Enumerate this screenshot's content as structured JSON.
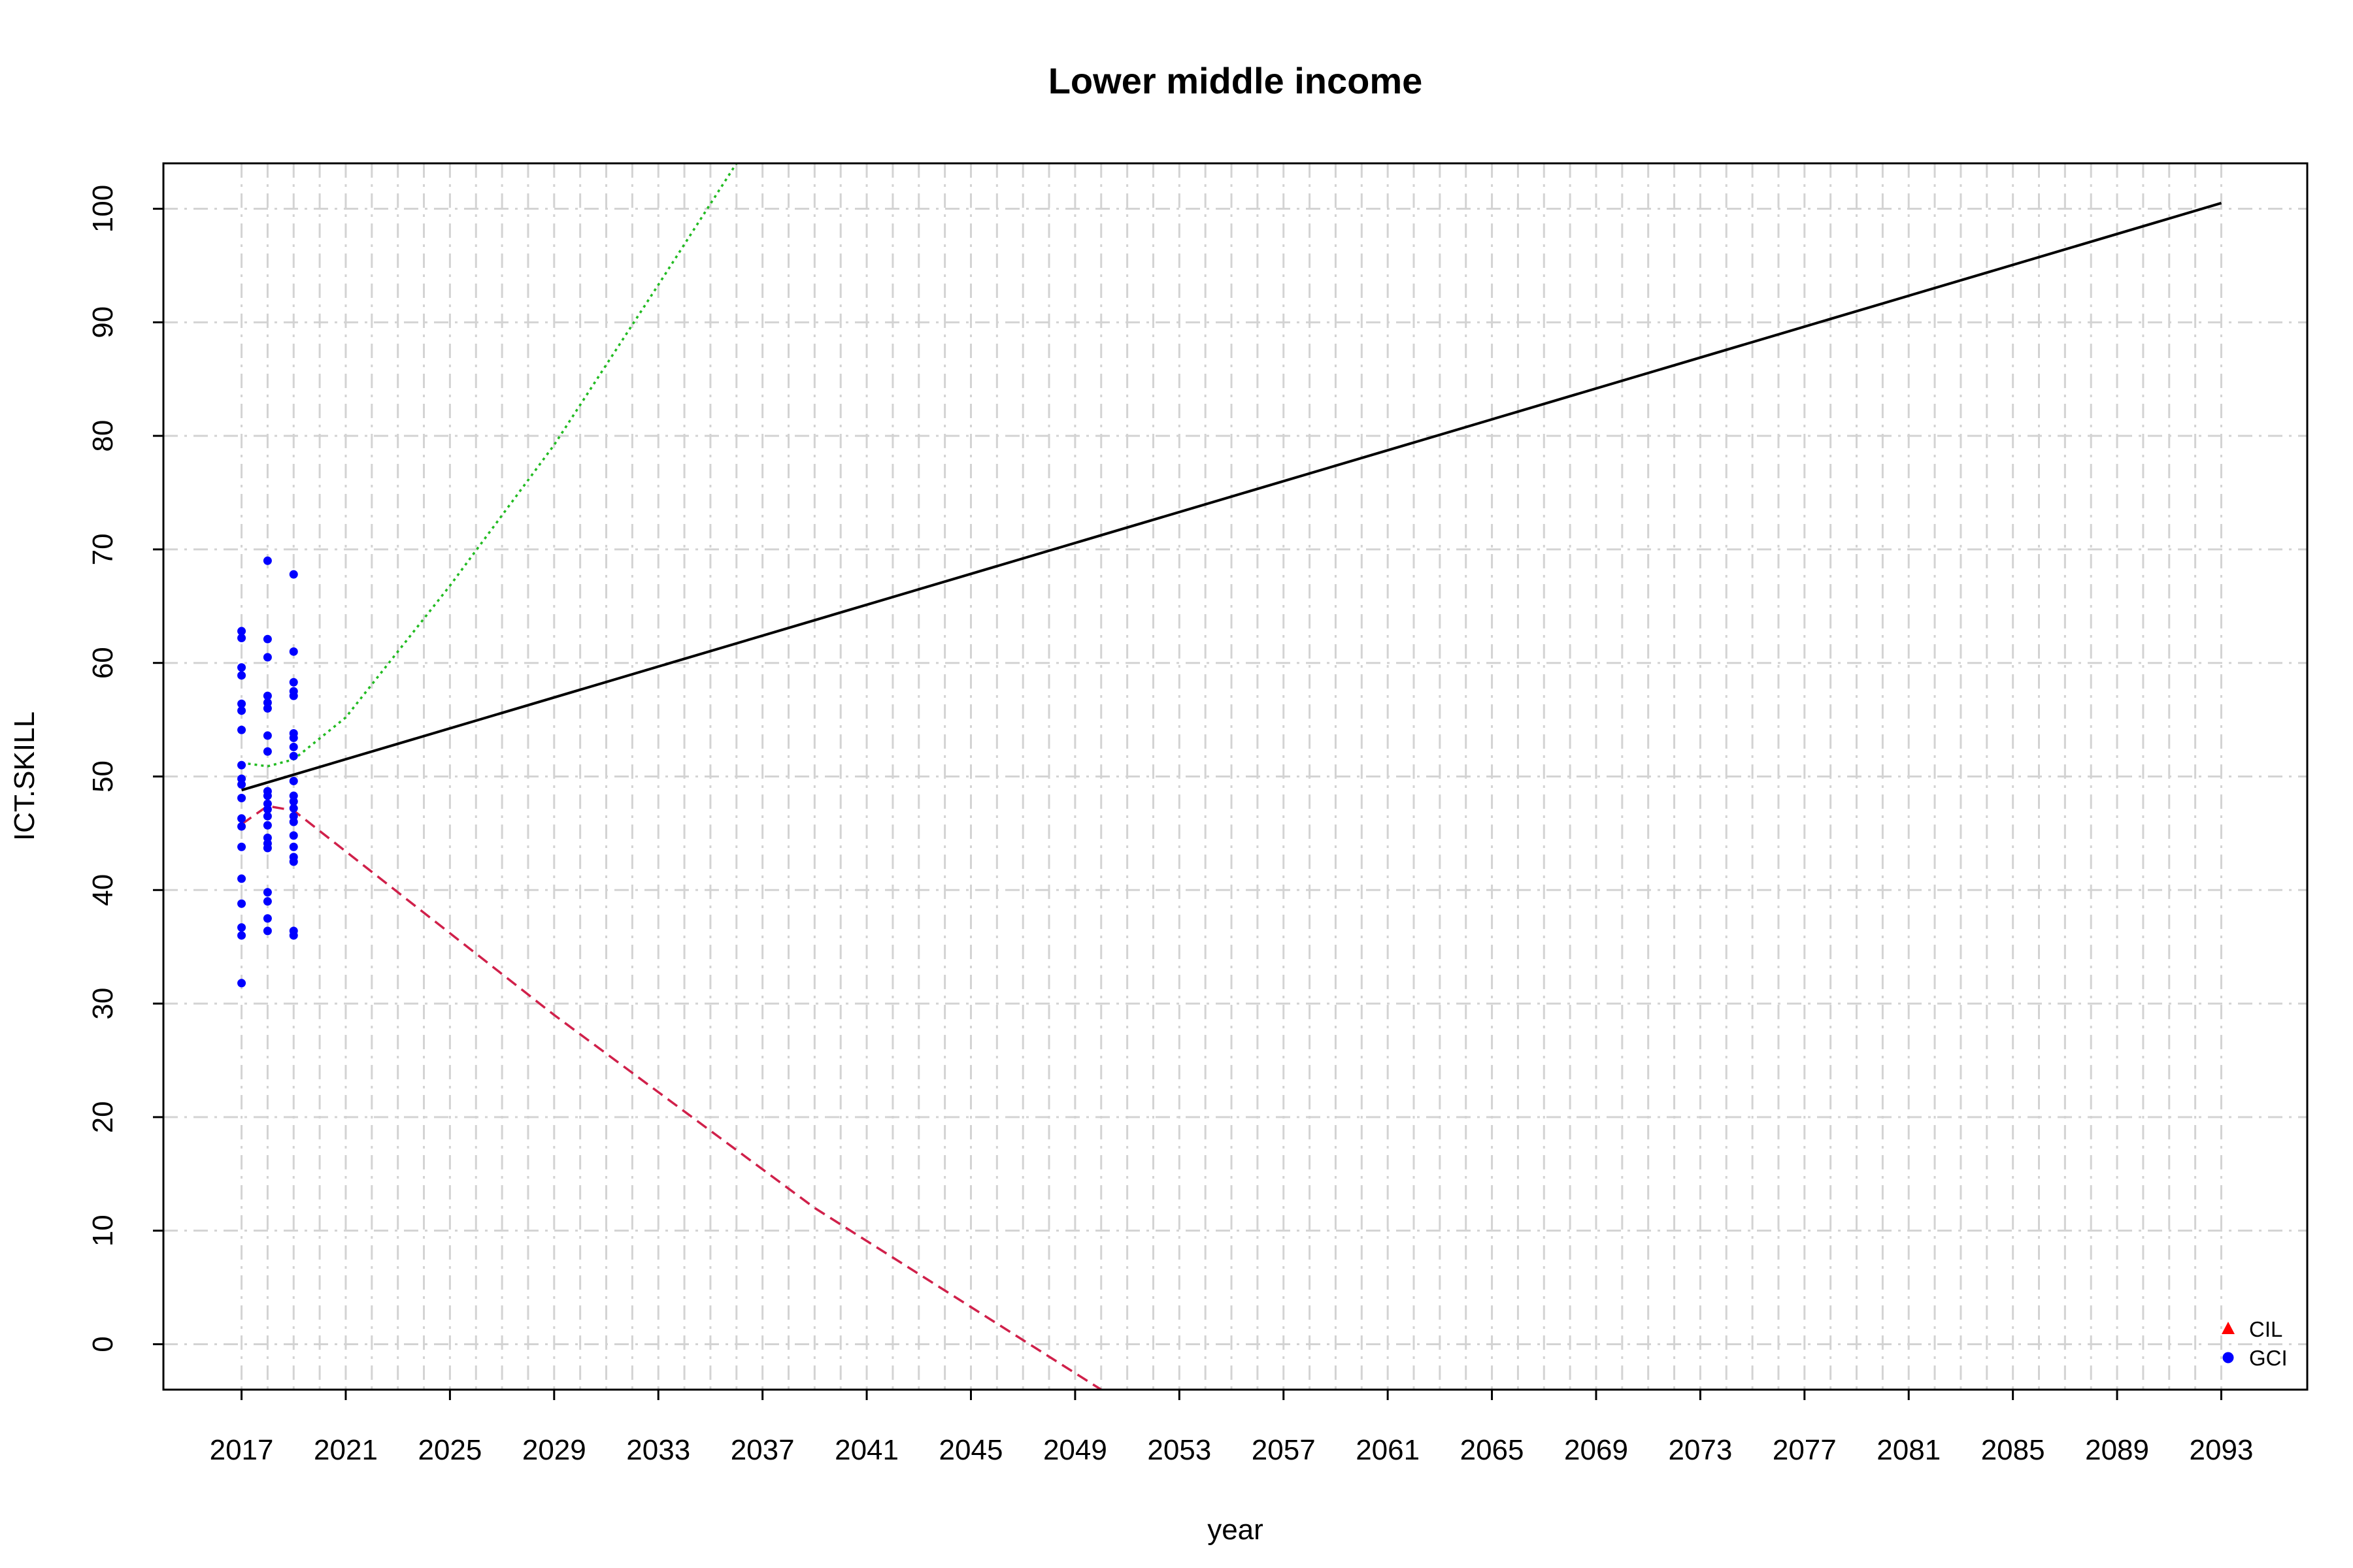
{
  "chart_data": {
    "type": "scatter",
    "title": "Lower middle income",
    "xlabel": "year",
    "ylabel": "ICT.SKILL",
    "xlim": [
      2014,
      2096.3
    ],
    "ylim": [
      -4,
      104
    ],
    "x_ticks": [
      2017,
      2021,
      2025,
      2029,
      2033,
      2037,
      2041,
      2045,
      2049,
      2053,
      2057,
      2061,
      2065,
      2069,
      2073,
      2077,
      2081,
      2085,
      2089,
      2093
    ],
    "y_ticks": [
      0,
      10,
      20,
      30,
      40,
      50,
      60,
      70,
      80,
      90,
      100
    ],
    "x_grid_step": 1,
    "grid": true,
    "legend": {
      "position": "bottom-right",
      "entries": [
        {
          "label": "CIL",
          "marker": "triangle",
          "color": "#ff0000"
        },
        {
          "label": "GCI",
          "marker": "circle",
          "color": "#0000ff"
        }
      ]
    },
    "points": [
      {
        "series": "GCI",
        "x": 2017,
        "values": [
          62.8,
          62.2,
          59.6,
          58.9,
          56.4,
          55.8,
          54.1,
          51.0,
          49.8,
          49.3,
          48.1,
          46.3,
          45.6,
          43.8,
          41.0,
          38.8,
          36.7,
          36.0,
          31.8
        ]
      },
      {
        "series": "GCI",
        "x": 2018,
        "values": [
          69.0,
          62.1,
          60.5,
          57.1,
          56.5,
          56.0,
          53.6,
          52.2,
          48.7,
          48.3,
          47.6,
          47.1,
          46.5,
          45.7,
          44.6,
          44.1,
          43.7,
          39.8,
          39.0,
          37.5,
          36.4
        ]
      },
      {
        "series": "GCI",
        "x": 2019,
        "values": [
          67.8,
          61.0,
          58.3,
          57.5,
          57.1,
          53.8,
          53.4,
          52.6,
          51.8,
          49.6,
          48.3,
          47.8,
          47.2,
          46.5,
          46.0,
          44.8,
          43.8,
          42.9,
          42.5,
          36.4,
          36.0
        ]
      }
    ],
    "lines": [
      {
        "name": "",
        "style": "solid",
        "color": "#000000",
        "x": [
          2017,
          2093
        ],
        "y": [
          48.8,
          100.5
        ]
      },
      {
        "name": "",
        "style": "dotted",
        "color": "#22bb22",
        "x": [
          2017,
          2018,
          2019,
          2021,
          2025,
          2029,
          2033,
          2036
        ],
        "y": [
          51.2,
          50.9,
          51.5,
          55.2,
          66.8,
          79.2,
          93.3,
          104
        ]
      },
      {
        "name": "",
        "style": "dashed",
        "color": "#d0204a",
        "x": [
          2017,
          2018,
          2019,
          2029,
          2039,
          2050
        ],
        "y": [
          45.8,
          47.4,
          47.0,
          29.0,
          12.0,
          -4
        ]
      }
    ]
  }
}
